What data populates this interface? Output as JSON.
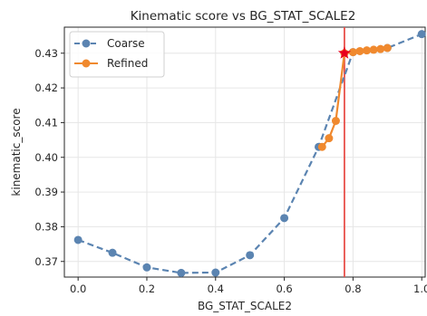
{
  "chart_data": {
    "type": "line",
    "title": "Kinematic score vs BG_STAT_SCALE2",
    "xlabel": "BG_STAT_SCALE2",
    "ylabel": "kinematic_score",
    "xlim": [
      -0.04,
      1.01
    ],
    "ylim": [
      0.3655,
      0.4375
    ],
    "xticks": [
      0.0,
      0.2,
      0.4,
      0.6,
      0.8,
      1.0
    ],
    "xtick_labels": [
      "0.0",
      "0.2",
      "0.4",
      "0.6",
      "0.8",
      "1.0"
    ],
    "yticks": [
      0.37,
      0.38,
      0.39,
      0.4,
      0.41,
      0.42,
      0.43
    ],
    "ytick_labels": [
      "0.37",
      "0.38",
      "0.39",
      "0.40",
      "0.41",
      "0.42",
      "0.43"
    ],
    "grid": true,
    "legend": "top-left",
    "series": [
      {
        "name": "Coarse",
        "color": "#5b84b1",
        "style": "dashed",
        "x": [
          0.0,
          0.1,
          0.2,
          0.3,
          0.4,
          0.5,
          0.6,
          0.7,
          0.8,
          0.9,
          1.0
        ],
        "y": [
          0.3762,
          0.3725,
          0.3683,
          0.3667,
          0.3668,
          0.3718,
          0.3825,
          0.403,
          0.4303,
          0.4315,
          0.4355
        ]
      },
      {
        "name": "Refined",
        "color": "#f0892e",
        "style": "solid",
        "x": [
          0.71,
          0.73,
          0.75,
          0.775,
          0.8,
          0.82,
          0.84,
          0.86,
          0.88,
          0.9
        ],
        "y": [
          0.403,
          0.4055,
          0.4105,
          0.43,
          0.4303,
          0.4306,
          0.4308,
          0.431,
          0.4312,
          0.4315
        ]
      }
    ],
    "best_point": {
      "x": 0.775,
      "y": 0.43,
      "color": "#e8001c"
    },
    "vertical_line": {
      "x": 0.775,
      "color": "#e8504a"
    }
  }
}
